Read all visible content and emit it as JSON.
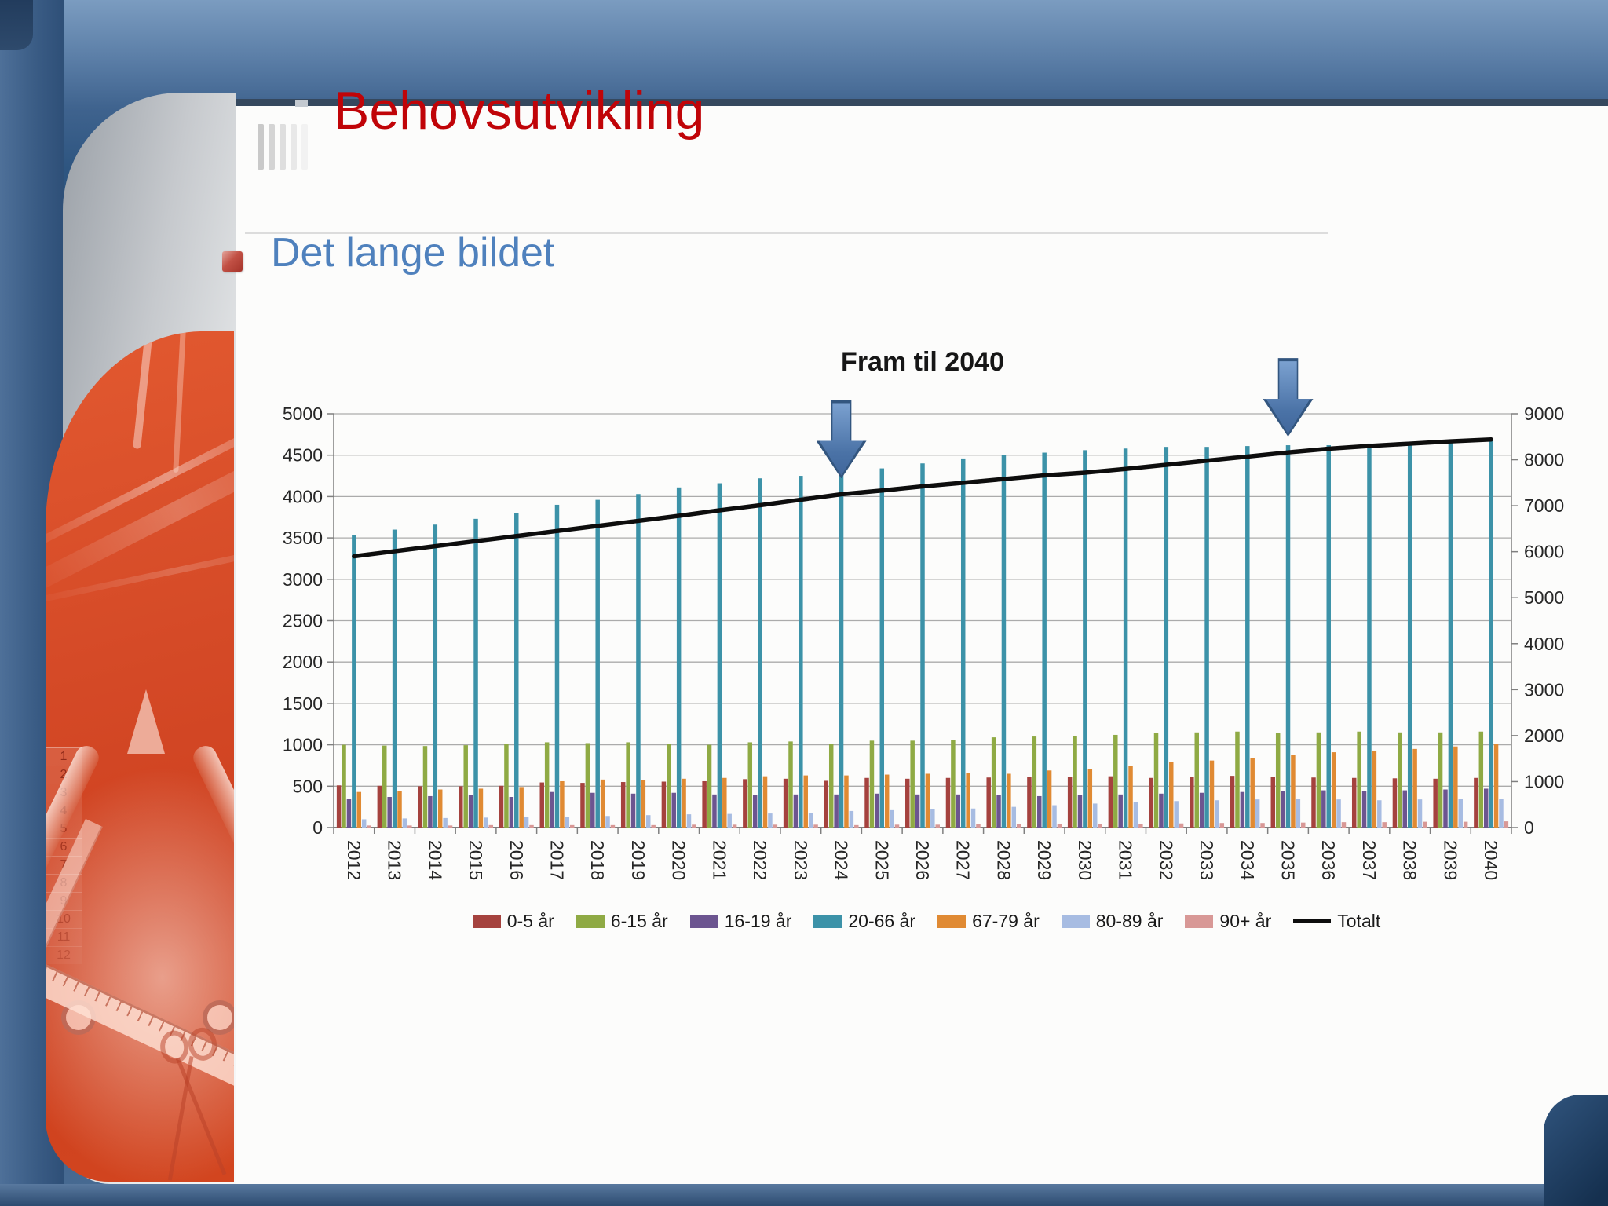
{
  "page": {
    "title": "Behovsutvikling",
    "subtitle": "Det lange bildet"
  },
  "chart_data": {
    "type": "bar",
    "combo": "grouped bars with secondary-axis line",
    "title": "Fram til 2040",
    "categories": [
      "2012",
      "2013",
      "2014",
      "2015",
      "2016",
      "2017",
      "2018",
      "2019",
      "2020",
      "2021",
      "2022",
      "2023",
      "2024",
      "2025",
      "2026",
      "2027",
      "2028",
      "2029",
      "2030",
      "2031",
      "2032",
      "2033",
      "2034",
      "2035",
      "2036",
      "2037",
      "2038",
      "2039",
      "2040"
    ],
    "series": [
      {
        "name": "0-5 år",
        "color": "#A5423E",
        "values": [
          510,
          505,
          500,
          500,
          505,
          545,
          540,
          550,
          555,
          560,
          585,
          590,
          565,
          600,
          590,
          600,
          605,
          610,
          615,
          620,
          600,
          610,
          625,
          615,
          605,
          600,
          595,
          590,
          600
        ]
      },
      {
        "name": "6-15 år",
        "color": "#8FAA44",
        "values": [
          1000,
          990,
          985,
          995,
          1010,
          1030,
          1020,
          1030,
          1010,
          1000,
          1030,
          1040,
          1010,
          1050,
          1050,
          1060,
          1090,
          1100,
          1110,
          1120,
          1140,
          1150,
          1160,
          1140,
          1150,
          1160,
          1150,
          1150,
          1160
        ]
      },
      {
        "name": "16-19 år",
        "color": "#6C5590",
        "values": [
          350,
          370,
          380,
          390,
          370,
          430,
          420,
          410,
          420,
          400,
          390,
          400,
          400,
          410,
          400,
          400,
          390,
          380,
          390,
          400,
          410,
          420,
          430,
          440,
          450,
          440,
          450,
          460,
          470
        ]
      },
      {
        "name": "20-66 år",
        "color": "#3C92A8",
        "values": [
          3530,
          3600,
          3660,
          3730,
          3800,
          3900,
          3960,
          4030,
          4110,
          4160,
          4220,
          4250,
          4300,
          4340,
          4400,
          4460,
          4500,
          4530,
          4560,
          4580,
          4600,
          4600,
          4610,
          4620,
          4620,
          4640,
          4650,
          4650,
          4680
        ]
      },
      {
        "name": "67-79 år",
        "color": "#E08A33",
        "values": [
          430,
          440,
          460,
          470,
          490,
          560,
          580,
          570,
          590,
          600,
          620,
          630,
          630,
          640,
          650,
          660,
          650,
          690,
          710,
          740,
          790,
          810,
          840,
          880,
          910,
          930,
          950,
          980,
          1010
        ]
      },
      {
        "name": "80-89 år",
        "color": "#A7BCE2",
        "values": [
          100,
          110,
          115,
          120,
          125,
          130,
          140,
          150,
          160,
          165,
          170,
          180,
          200,
          210,
          220,
          230,
          250,
          270,
          290,
          310,
          320,
          330,
          340,
          350,
          340,
          330,
          340,
          350,
          350
        ]
      },
      {
        "name": "90+ år",
        "color": "#D89896",
        "values": [
          25,
          25,
          25,
          30,
          30,
          30,
          30,
          30,
          35,
          35,
          35,
          35,
          30,
          35,
          35,
          40,
          40,
          40,
          45,
          45,
          50,
          55,
          55,
          60,
          65,
          65,
          70,
          70,
          75
        ]
      }
    ],
    "line_series": {
      "name": "Totalt",
      "color": "#0d0d0d",
      "axis": "right",
      "values": [
        5900,
        6010,
        6120,
        6230,
        6340,
        6450,
        6560,
        6670,
        6780,
        6900,
        7010,
        7130,
        7250,
        7330,
        7420,
        7500,
        7580,
        7660,
        7720,
        7800,
        7890,
        7980,
        8070,
        8160,
        8240,
        8300,
        8350,
        8400,
        8440
      ]
    },
    "left_axis": {
      "min": 0,
      "max": 5000,
      "step": 500
    },
    "right_axis": {
      "min": 0,
      "max": 9000,
      "step": 1000
    },
    "grid": true,
    "legend_position": "bottom",
    "annotations": [
      {
        "type": "down-arrow",
        "at_category": "2024"
      },
      {
        "type": "down-arrow",
        "at_category": "2035"
      }
    ]
  },
  "decor": {
    "row_numbers": [
      "1",
      "2",
      "3",
      "4",
      "5",
      "6",
      "7",
      "8",
      "9",
      "10",
      "11",
      "12"
    ],
    "arrow_color": "#4F81BD"
  }
}
